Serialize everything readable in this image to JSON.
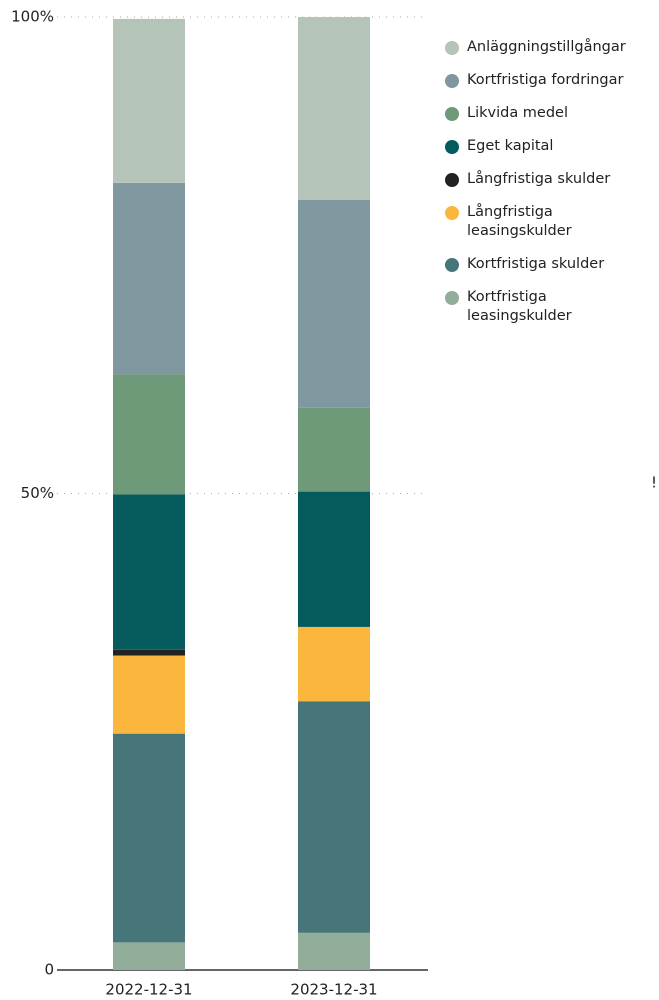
{
  "chart_data": {
    "type": "stacked_bar",
    "categories": [
      "2022-12-31",
      "2023-12-31"
    ],
    "series": [
      {
        "name": "Anläggningstillgångar",
        "color": "#b5c4b8",
        "values": [
          17.2,
          19.2
        ]
      },
      {
        "name": "Kortfristiga fordringar",
        "color": "#7f979e",
        "values": [
          20.1,
          21.8
        ]
      },
      {
        "name": "Likvida medel",
        "color": "#6f9a7a",
        "values": [
          12.6,
          8.8
        ]
      },
      {
        "name": "Eget kapital",
        "color": "#055a5c",
        "values": [
          16.3,
          14.2
        ]
      },
      {
        "name": "Långfristiga skulder",
        "color": "#222222",
        "values": [
          0.6,
          0
        ]
      },
      {
        "name": "Långfristiga leasingskulder",
        "color": "#fbb63e",
        "values": [
          8.2,
          7.8
        ]
      },
      {
        "name": "Kortfristiga skulder",
        "color": "#46757a",
        "values": [
          21.9,
          24.3
        ]
      },
      {
        "name": "Kortfristiga leasingskulder",
        "color": "#92ad9a",
        "values": [
          2.9,
          3.9
        ]
      }
    ],
    "stack_order": "bottom-up from last series",
    "ylim": [
      0,
      100
    ],
    "yticks": [
      0,
      {
        "value": 50,
        "label": "50%"
      },
      {
        "value": 100,
        "label": "100%"
      }
    ],
    "grid": true,
    "legend": "right",
    "annotation": "!"
  }
}
